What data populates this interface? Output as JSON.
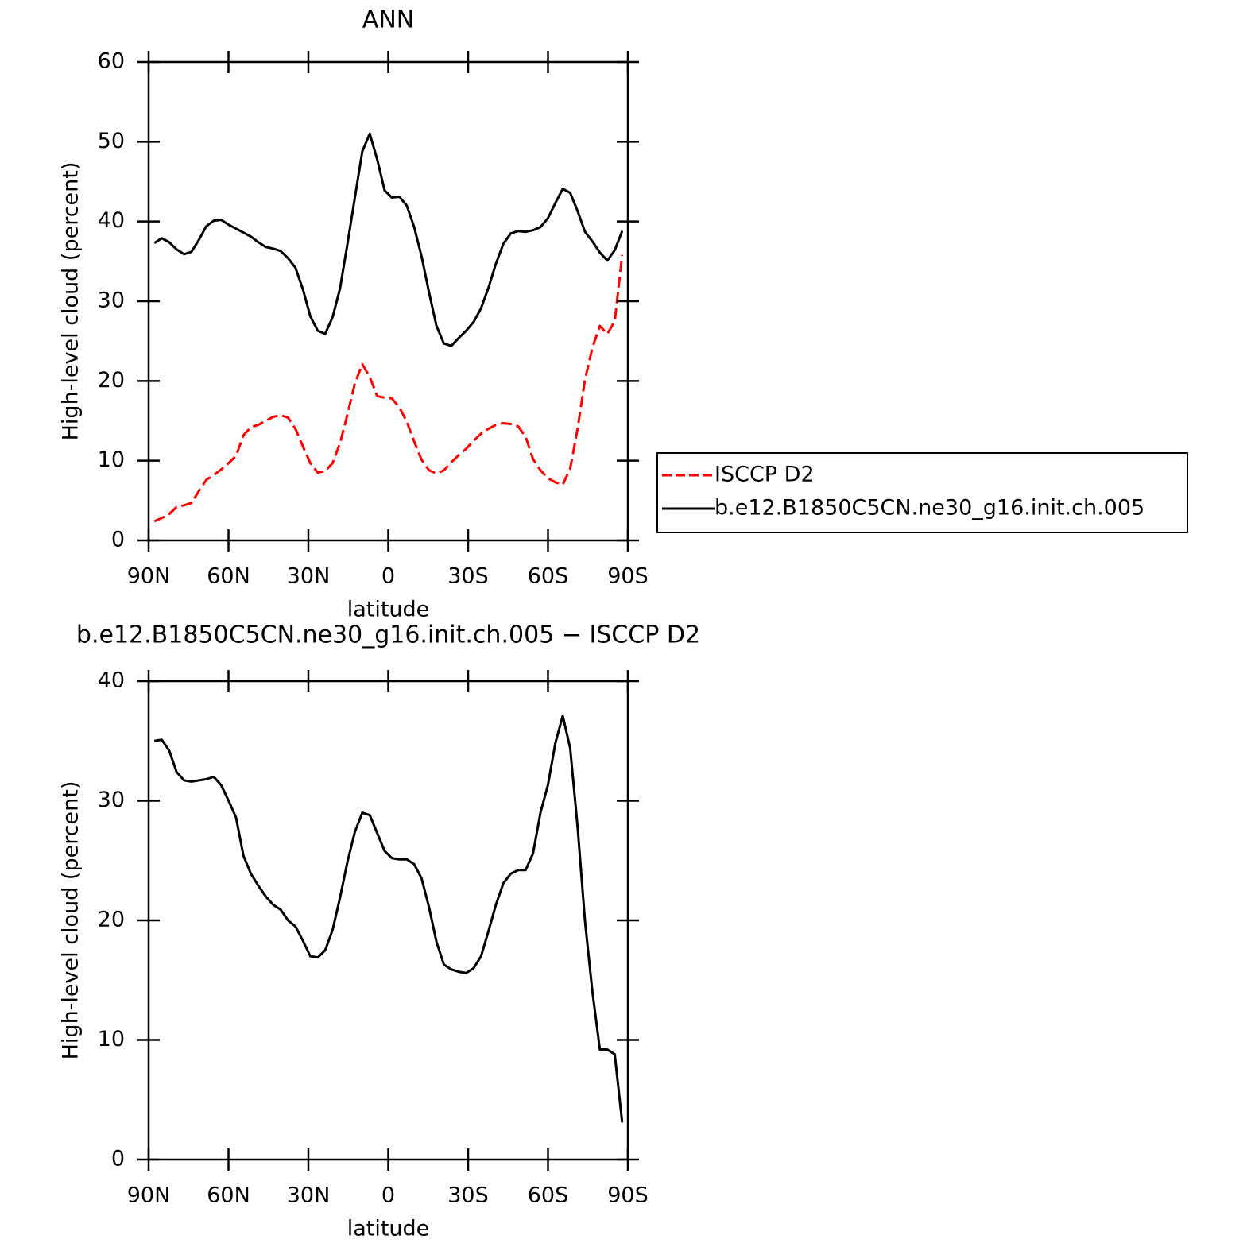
{
  "chart_data": [
    {
      "type": "line",
      "title": "ANN",
      "xlabel": "latitude",
      "ylabel": "High-level cloud (percent)",
      "x": [
        87.86,
        85.07,
        82.28,
        79.49,
        76.7,
        73.91,
        71.12,
        68.33,
        65.54,
        62.75,
        59.96,
        57.17,
        54.38,
        51.59,
        48.8,
        46.01,
        43.22,
        40.43,
        37.64,
        34.85,
        32.06,
        29.27,
        26.48,
        23.69,
        20.9,
        18.11,
        15.32,
        12.53,
        9.74,
        6.95,
        4.16,
        1.37,
        -1.37,
        -4.16,
        -6.95,
        -9.74,
        -12.53,
        -15.32,
        -18.11,
        -20.9,
        -23.69,
        -26.48,
        -29.27,
        -32.06,
        -34.85,
        -37.64,
        -40.43,
        -43.22,
        -46.01,
        -48.8,
        -51.59,
        -54.38,
        -57.17,
        -59.96,
        -62.75,
        -65.54,
        -68.33,
        -71.12,
        -73.91,
        -76.7,
        -79.49,
        -82.28,
        -85.07,
        -87.86
      ],
      "xlim": [
        90,
        -90
      ],
      "xticks": [
        {
          "value": 90,
          "label": "90N"
        },
        {
          "value": 60,
          "label": "60N"
        },
        {
          "value": 30,
          "label": "30N"
        },
        0,
        {
          "value": -30,
          "label": "30S"
        },
        {
          "value": -60,
          "label": "60S"
        },
        {
          "value": -90,
          "label": "90S"
        }
      ],
      "ylim": [
        0,
        60
      ],
      "yticks": [
        0,
        10,
        20,
        30,
        40,
        50,
        60
      ],
      "legend": "right",
      "series": [
        {
          "name": "ISCCP D2",
          "color": "#ff0000",
          "dash": true,
          "values": [
            2.4,
            2.8,
            3.3,
            4.2,
            4.4,
            4.7,
            6.2,
            7.6,
            8.2,
            8.9,
            9.7,
            10.6,
            13.2,
            14.2,
            14.5,
            15.0,
            15.5,
            15.7,
            15.4,
            14.0,
            11.8,
            9.7,
            8.5,
            8.7,
            9.7,
            12.2,
            15.8,
            19.7,
            22.1,
            20.5,
            18.1,
            17.9,
            17.8,
            16.7,
            14.9,
            12.4,
            10.1,
            8.8,
            8.4,
            8.8,
            9.8,
            10.7,
            11.5,
            12.5,
            13.4,
            14.0,
            14.5,
            14.7,
            14.6,
            14.3,
            13.0,
            10.2,
            8.8,
            7.8,
            7.3,
            7.0,
            9.0,
            14.0,
            20.2,
            24.2,
            26.9,
            25.9,
            27.5,
            35.8
          ]
        },
        {
          "name": "b.e12.B1850C5CN.ne30_g16.init.ch.005",
          "color": "#000000",
          "dash": false,
          "values": [
            37.3,
            37.9,
            37.4,
            36.5,
            35.9,
            36.2,
            37.7,
            39.4,
            40.1,
            40.2,
            39.6,
            39.1,
            38.6,
            38.1,
            37.4,
            36.8,
            36.6,
            36.3,
            35.4,
            34.2,
            31.5,
            28.1,
            26.3,
            25.9,
            28.0,
            31.6,
            37.2,
            43.0,
            48.8,
            51.0,
            47.8,
            43.9,
            43.0,
            43.1,
            42.0,
            39.3,
            35.6,
            31.1,
            26.9,
            24.7,
            24.4,
            25.4,
            26.3,
            27.4,
            29.1,
            31.7,
            34.7,
            37.2,
            38.5,
            38.8,
            38.7,
            38.9,
            39.3,
            40.4,
            42.3,
            44.1,
            43.6,
            41.3,
            38.7,
            37.5,
            36.1,
            35.1,
            36.4,
            38.8
          ]
        }
      ]
    },
    {
      "type": "line",
      "title": "b.e12.B1850C5CN.ne30_g16.init.ch.005 − ISCCP D2",
      "xlabel": "latitude",
      "ylabel": "High-level cloud (percent)",
      "x": [
        87.86,
        85.07,
        82.28,
        79.49,
        76.7,
        73.91,
        71.12,
        68.33,
        65.54,
        62.75,
        59.96,
        57.17,
        54.38,
        51.59,
        48.8,
        46.01,
        43.22,
        40.43,
        37.64,
        34.85,
        32.06,
        29.27,
        26.48,
        23.69,
        20.9,
        18.11,
        15.32,
        12.53,
        9.74,
        6.95,
        4.16,
        1.37,
        -1.37,
        -4.16,
        -6.95,
        -9.74,
        -12.53,
        -15.32,
        -18.11,
        -20.9,
        -23.69,
        -26.48,
        -29.27,
        -32.06,
        -34.85,
        -37.64,
        -40.43,
        -43.22,
        -46.01,
        -48.8,
        -51.59,
        -54.38,
        -57.17,
        -59.96,
        -62.75,
        -65.54,
        -68.33,
        -71.12,
        -73.91,
        -76.7,
        -79.49,
        -82.28,
        -85.07,
        -87.86
      ],
      "xlim": [
        90,
        -90
      ],
      "xticks": [
        {
          "value": 90,
          "label": "90N"
        },
        {
          "value": 60,
          "label": "60N"
        },
        {
          "value": 30,
          "label": "30N"
        },
        0,
        {
          "value": -30,
          "label": "30S"
        },
        {
          "value": -60,
          "label": "60S"
        },
        {
          "value": -90,
          "label": "90S"
        }
      ],
      "ylim": [
        0,
        40
      ],
      "yticks": [
        0,
        10,
        20,
        30,
        40
      ],
      "series": [
        {
          "color": "#000000",
          "dash": false,
          "values": [
            35.0,
            35.1,
            34.2,
            32.4,
            31.7,
            31.6,
            31.7,
            31.8,
            32.0,
            31.3,
            30.0,
            28.6,
            25.4,
            23.9,
            22.9,
            22.0,
            21.3,
            20.9,
            20.0,
            19.5,
            18.3,
            17.0,
            16.9,
            17.5,
            19.2,
            21.9,
            24.9,
            27.4,
            29.0,
            28.8,
            27.3,
            25.8,
            25.2,
            25.1,
            25.1,
            24.7,
            23.5,
            21.1,
            18.2,
            16.3,
            15.9,
            15.7,
            15.6,
            16.0,
            17.0,
            19.1,
            21.3,
            23.1,
            23.9,
            24.2,
            24.2,
            25.6,
            29.0,
            31.3,
            34.8,
            37.1,
            34.4,
            27.8,
            19.9,
            14.0,
            9.2,
            9.2,
            8.8,
            3.1
          ]
        }
      ]
    }
  ]
}
